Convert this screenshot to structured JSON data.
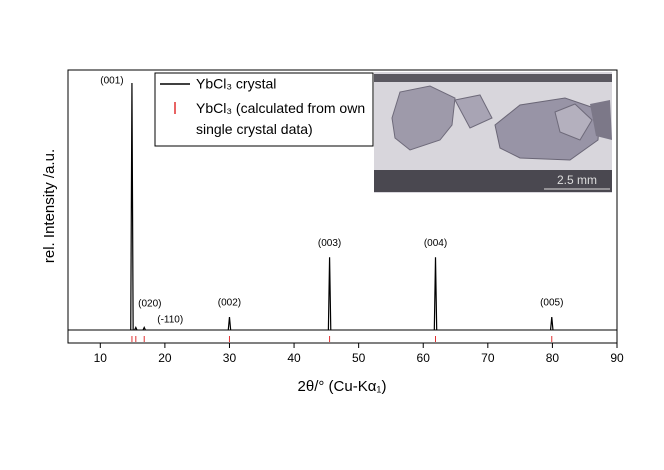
{
  "chart_data": {
    "type": "xrd",
    "xlabel": "2θ/° (Cu-Kα₁)",
    "ylabel": "rel. Intensity /a.u.",
    "xlim": [
      5,
      90
    ],
    "xticks": [
      10,
      20,
      30,
      40,
      50,
      60,
      70,
      80,
      90
    ],
    "ylim": [
      -5,
      100
    ],
    "legend": "upper-left",
    "series": [
      {
        "name": "YbCl₃ crystal",
        "color": "#000000",
        "x": [
          14.9,
          15.5,
          16.8,
          30,
          45.5,
          61.9,
          79.9
        ],
        "values": [
          95,
          1,
          1,
          5,
          28,
          28,
          5
        ],
        "labels": [
          "(001)",
          "(020)",
          "(-110)",
          "(002)",
          "(003)",
          "(004)",
          "(005)"
        ]
      },
      {
        "name": "YbCl₃ (calculated from own single crystal data)",
        "color": "#e03030",
        "x": [
          14.9,
          15.5,
          16.8,
          30,
          45.5,
          61.9,
          79.9
        ]
      }
    ],
    "inset": {
      "scale_bar": "2.5 mm"
    }
  }
}
